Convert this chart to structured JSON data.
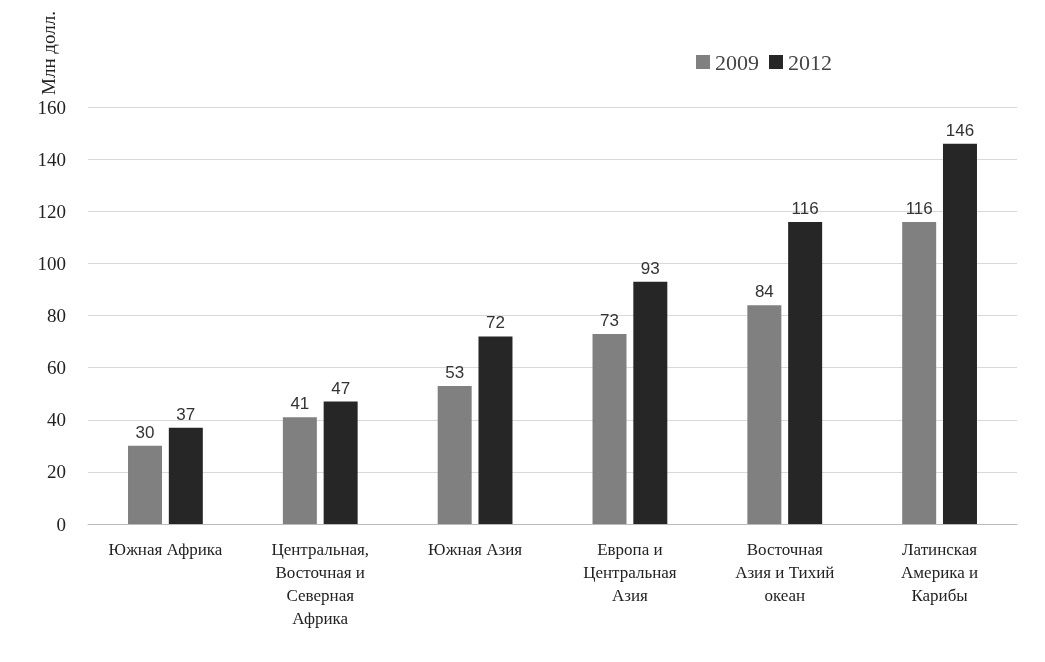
{
  "chart_data": {
    "type": "bar",
    "ylabel": "Млн долл.",
    "categories": [
      "Южная Африка",
      "Центральная, Восточная и Северная Африка",
      "Южная Азия",
      "Европа и Центральная Азия",
      "Восточная Азия и Тихий океан",
      "Латинская Америка и Карибы"
    ],
    "series": [
      {
        "name": "2009",
        "color": "#808080",
        "values": [
          30,
          41,
          53,
          73,
          84,
          116
        ]
      },
      {
        "name": "2012",
        "color": "#262626",
        "values": [
          37,
          47,
          72,
          93,
          116,
          146
        ]
      }
    ],
    "ylim": [
      0,
      160
    ],
    "yticks": [
      0,
      20,
      40,
      60,
      80,
      100,
      120,
      140,
      160
    ],
    "grid": "y",
    "legend": "top right",
    "data_labels": true
  }
}
